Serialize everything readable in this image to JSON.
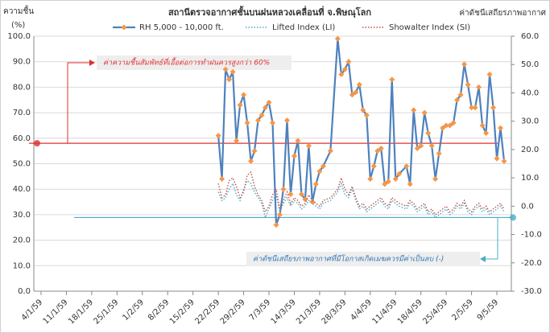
{
  "chart_data": {
    "type": "line",
    "title": "สถานีตรวจอากาศชั้นบนฝนหลวงเคลื่อนที่  จ.พิษณุโลก",
    "ylabel": [
      "ความชื้น",
      "(%)"
    ],
    "y2label": "ค่าดัชนีเสถียรภาพอากาศ",
    "xlim": [
      -2,
      130
    ],
    "xticks": [
      {
        "value": 0,
        "label": "4/1/59"
      },
      {
        "value": 7,
        "label": "11/1/59"
      },
      {
        "value": 14,
        "label": "18/1/59"
      },
      {
        "value": 21,
        "label": "25/1/59"
      },
      {
        "value": 28,
        "label": "1/2/59"
      },
      {
        "value": 35,
        "label": "8/2/59"
      },
      {
        "value": 42,
        "label": "15/2/59"
      },
      {
        "value": 49,
        "label": "22/2/59"
      },
      {
        "value": 56,
        "label": "29/2/59"
      },
      {
        "value": 63,
        "label": "7/3/59"
      },
      {
        "value": 70,
        "label": "14/3/59"
      },
      {
        "value": 77,
        "label": "21/3/59"
      },
      {
        "value": 84,
        "label": "28/3/59"
      },
      {
        "value": 91,
        "label": "4/4/59"
      },
      {
        "value": 98,
        "label": "11/4/59"
      },
      {
        "value": 105,
        "label": "18/4/59"
      },
      {
        "value": 112,
        "label": "25/4/59"
      },
      {
        "value": 119,
        "label": "2/5/59"
      },
      {
        "value": 126,
        "label": "9/5/59"
      }
    ],
    "ylim": [
      0,
      100
    ],
    "yticks": [
      {
        "value": 0,
        "label": "0.0"
      },
      {
        "value": 10,
        "label": "10.0"
      },
      {
        "value": 20,
        "label": "20.0"
      },
      {
        "value": 30,
        "label": "30.0"
      },
      {
        "value": 40,
        "label": "40.0"
      },
      {
        "value": 50,
        "label": "50.0"
      },
      {
        "value": 60,
        "label": "60.0"
      },
      {
        "value": 70,
        "label": "70.0"
      },
      {
        "value": 80,
        "label": "80.0"
      },
      {
        "value": 90,
        "label": "90.0"
      },
      {
        "value": 100,
        "label": "100.0"
      }
    ],
    "y2lim": [
      -30,
      60
    ],
    "y2ticks": [
      {
        "value": -30,
        "label": "-30.0"
      },
      {
        "value": -20,
        "label": "-20.0"
      },
      {
        "value": -10,
        "label": "-10.0"
      },
      {
        "value": 0,
        "label": "0.0"
      },
      {
        "value": 10,
        "label": "10.0"
      },
      {
        "value": 20,
        "label": "20.0"
      },
      {
        "value": 30,
        "label": "30.0"
      },
      {
        "value": 40,
        "label": "40.0"
      },
      {
        "value": 50,
        "label": "50.0"
      },
      {
        "value": 60,
        "label": "60.0"
      }
    ],
    "x": [
      49,
      50,
      51,
      52,
      53,
      54,
      55,
      56,
      57,
      58,
      59,
      60,
      61,
      62,
      63,
      64,
      65,
      66,
      67,
      68,
      69,
      70,
      71,
      72,
      73,
      74,
      75,
      76,
      77,
      78,
      80,
      82,
      83,
      84,
      85,
      86,
      87,
      88,
      89,
      90,
      91,
      92,
      93,
      94,
      95,
      96,
      97,
      98,
      99,
      101,
      102,
      103,
      104,
      105,
      106,
      107,
      108,
      109,
      110,
      111,
      112,
      113,
      114,
      115,
      116,
      117,
      118,
      119,
      120,
      121,
      122,
      123,
      124,
      125,
      126,
      127,
      128
    ],
    "series": [
      {
        "name": "RH 5,000 - 10,000 ft.",
        "color": "#4f81bd",
        "marker_color": "#f79646",
        "style": "solid",
        "values": [
          61,
          44,
          87,
          83,
          86,
          59,
          73,
          77,
          66,
          51,
          55,
          67,
          69,
          72,
          74,
          66,
          26,
          30,
          40,
          67,
          38,
          53,
          59,
          38,
          36,
          57,
          35,
          42,
          47,
          49,
          55,
          99,
          85,
          87,
          90,
          77,
          78,
          81,
          71,
          69,
          44,
          49,
          55,
          56,
          42,
          43,
          83,
          44,
          46,
          49,
          42,
          71,
          56,
          57,
          70,
          62,
          57,
          44,
          54,
          64,
          65,
          65,
          66,
          75,
          77,
          89,
          81,
          72,
          72,
          80,
          65,
          62,
          85,
          72,
          52,
          64,
          51
        ]
      },
      {
        "name": "Lifted Index (LI)",
        "color": "#4bacc6",
        "style": "dotted",
        "axis": "y2",
        "values": [
          5,
          2,
          3,
          6,
          8,
          4,
          2,
          6,
          9,
          8,
          5,
          3,
          1,
          -4,
          -1,
          2,
          4,
          -2,
          1,
          3,
          0,
          2,
          1,
          -1,
          0,
          2,
          1,
          0,
          -1,
          1,
          2,
          5,
          8,
          4,
          3,
          6,
          2,
          -1,
          0,
          -2,
          -1,
          0,
          1,
          2,
          0,
          -1,
          2,
          1,
          0,
          -1,
          1,
          0,
          -2,
          -1,
          0,
          -3,
          -2,
          -4,
          -3,
          -2,
          -1,
          -3,
          -2,
          0,
          -1,
          1,
          -2,
          -3,
          -1,
          0,
          -2,
          -1,
          -3,
          -2,
          -1,
          0,
          -2
        ]
      },
      {
        "name": "Showalter Index (SI)",
        "color": "#c0504d",
        "style": "dotted",
        "axis": "y2",
        "values": [
          8,
          3,
          4,
          9,
          10,
          7,
          3,
          5,
          11,
          12,
          7,
          4,
          2,
          -2,
          0,
          4,
          6,
          -1,
          2,
          5,
          1,
          3,
          2,
          0,
          1,
          4,
          2,
          1,
          0,
          2,
          3,
          6,
          10,
          6,
          4,
          7,
          3,
          0,
          1,
          -1,
          0,
          1,
          2,
          3,
          1,
          0,
          3,
          2,
          1,
          0,
          2,
          1,
          -1,
          0,
          1,
          -2,
          -1,
          -3,
          -2,
          -1,
          0,
          -2,
          -1,
          1,
          0,
          2,
          -1,
          -2,
          0,
          1,
          -1,
          0,
          -2,
          -1,
          0,
          1,
          -1
        ]
      }
    ],
    "reference_lines": [
      {
        "value": 58,
        "color": "#e03030",
        "annotation": "ค่าความชื้นสัมพัทธ์ที่เอื้อต่อการทำฝนควรสูงกว่า 60%"
      },
      {
        "value": -4,
        "axis": "y2",
        "color": "#4bacc6",
        "annotation": "ค่าดัชนีเสถียรภาพอากาศที่มีโอกาสเกิดเมฆควรมีค่าเป็นลบ (-)"
      }
    ]
  }
}
